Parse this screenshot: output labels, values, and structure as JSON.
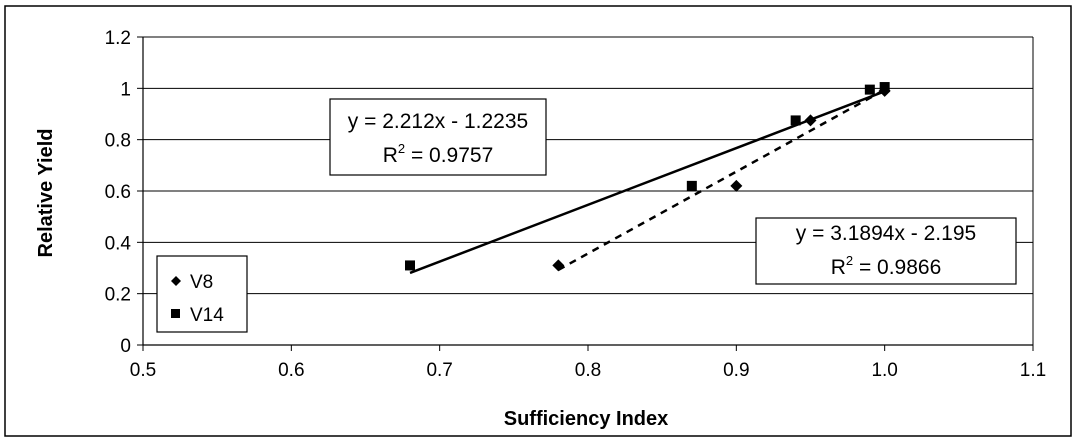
{
  "chart_data": {
    "type": "scatter",
    "title": "",
    "xlabel": "Sufficiency Index",
    "ylabel": "Relative Yield",
    "xlim": [
      0.5,
      1.1
    ],
    "ylim": [
      0,
      1.2
    ],
    "x_ticks": [
      "0.5",
      "0.6",
      "0.7",
      "0.8",
      "0.9",
      "1.0",
      "1.1"
    ],
    "y_ticks": [
      "0",
      "0.2",
      "0.4",
      "0.6",
      "0.8",
      "1",
      "1.2"
    ],
    "grid": "horizontal",
    "legend_position": "bottom-left",
    "series": [
      {
        "name": "V8",
        "marker": "diamond",
        "color": "#000000",
        "points": [
          {
            "x": 0.78,
            "y": 0.31
          },
          {
            "x": 0.9,
            "y": 0.62
          },
          {
            "x": 0.95,
            "y": 0.875
          },
          {
            "x": 1.0,
            "y": 0.99
          }
        ],
        "trendline": {
          "style": "dashed",
          "slope": 3.1894,
          "intercept": -2.195,
          "x_range": [
            0.78,
            1.0
          ],
          "equation": "y = 3.1894x - 2.195",
          "r2_label": "R",
          "r2_sup": "2",
          "r2_value": " = 0.9866"
        }
      },
      {
        "name": "V14",
        "marker": "square",
        "color": "#000000",
        "points": [
          {
            "x": 0.68,
            "y": 0.31
          },
          {
            "x": 0.87,
            "y": 0.62
          },
          {
            "x": 0.94,
            "y": 0.875
          },
          {
            "x": 0.99,
            "y": 0.995
          },
          {
            "x": 1.0,
            "y": 1.005
          }
        ],
        "trendline": {
          "style": "solid",
          "slope": 2.212,
          "intercept": -1.2235,
          "x_range": [
            0.68,
            1.0
          ],
          "equation": "y = 2.212x - 1.2235",
          "r2_label": "R",
          "r2_sup": "2",
          "r2_value": " = 0.9757"
        }
      }
    ]
  }
}
